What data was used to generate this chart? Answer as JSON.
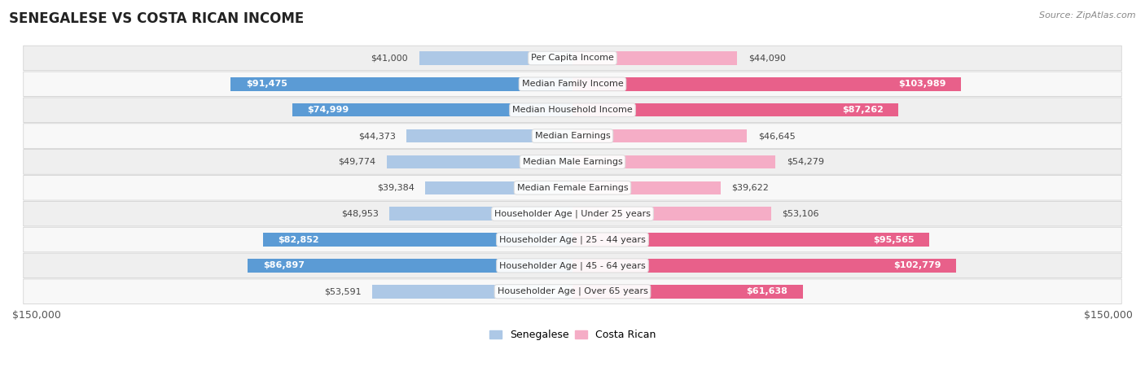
{
  "title": "SENEGALESE VS COSTA RICAN INCOME",
  "source": "Source: ZipAtlas.com",
  "categories": [
    "Per Capita Income",
    "Median Family Income",
    "Median Household Income",
    "Median Earnings",
    "Median Male Earnings",
    "Median Female Earnings",
    "Householder Age | Under 25 years",
    "Householder Age | 25 - 44 years",
    "Householder Age | 45 - 64 years",
    "Householder Age | Over 65 years"
  ],
  "senegalese_values": [
    41000,
    91475,
    74999,
    44373,
    49774,
    39384,
    48953,
    82852,
    86897,
    53591
  ],
  "costa_rican_values": [
    44090,
    103989,
    87262,
    46645,
    54279,
    39622,
    53106,
    95565,
    102779,
    61638
  ],
  "senegalese_labels": [
    "$41,000",
    "$91,475",
    "$74,999",
    "$44,373",
    "$49,774",
    "$39,384",
    "$48,953",
    "$82,852",
    "$86,897",
    "$53,591"
  ],
  "costa_rican_labels": [
    "$44,090",
    "$103,989",
    "$87,262",
    "$46,645",
    "$54,279",
    "$39,622",
    "$53,106",
    "$95,565",
    "$102,779",
    "$61,638"
  ],
  "senegalese_color_light": "#adc8e6",
  "senegalese_color_dark": "#5b9bd5",
  "costa_rican_color_light": "#f5adc6",
  "costa_rican_color_dark": "#e8608a",
  "row_bg_color": "#efefef",
  "row_bg_alt": "#f8f8f8",
  "center_label_bg": "#ffffff",
  "xlim": 150000,
  "legend_senegalese": "Senegalese",
  "legend_costa_rican": "Costa Rican",
  "axis_label_left": "$150,000",
  "axis_label_right": "$150,000",
  "sen_threshold": 60000,
  "cr_threshold": 60000
}
